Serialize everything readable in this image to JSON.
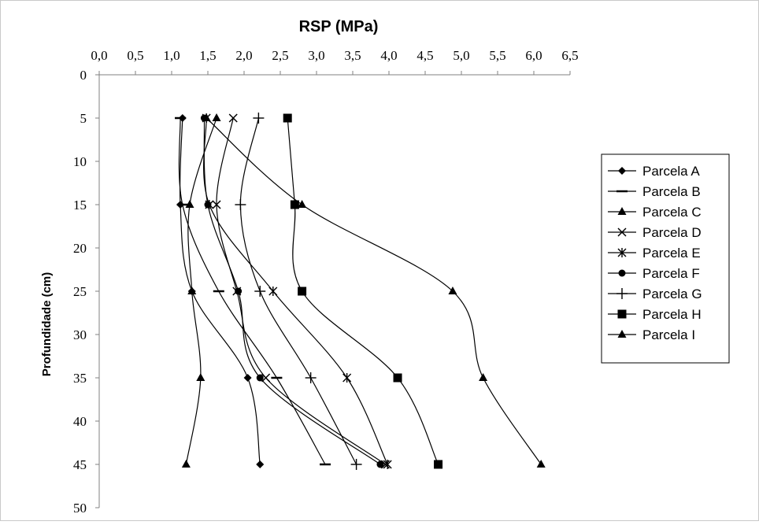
{
  "chart_data": {
    "type": "line",
    "title": "RSP (MPa)",
    "xlabel": "",
    "ylabel": "Profundidade (cm)",
    "x_axis_position": "top",
    "y_axis_inverted": true,
    "xlim": [
      0,
      6.5
    ],
    "ylim": [
      0,
      50
    ],
    "x_ticks": [
      "0,0",
      "0,5",
      "1,0",
      "1,5",
      "2,0",
      "2,5",
      "3,0",
      "3,5",
      "4,0",
      "4,5",
      "5,0",
      "5,5",
      "6,0",
      "6,5"
    ],
    "y_ticks": [
      "0",
      "5",
      "10",
      "15",
      "20",
      "25",
      "30",
      "35",
      "40",
      "45",
      "50"
    ],
    "grid": false,
    "legend_position": "right",
    "series": [
      {
        "name": "Parcela A",
        "marker": "diamond",
        "depth": [
          5,
          15,
          25,
          35,
          45
        ],
        "rsp": [
          1.15,
          1.12,
          1.28,
          2.05,
          2.22
        ]
      },
      {
        "name": "Parcela B",
        "marker": "dash",
        "depth": [
          5,
          15,
          25,
          35,
          45
        ],
        "rsp": [
          1.12,
          1.15,
          1.65,
          2.45,
          3.12
        ]
      },
      {
        "name": "Parcela C",
        "marker": "triangle",
        "depth": [
          5,
          15,
          25,
          35,
          45
        ],
        "rsp": [
          1.62,
          1.25,
          1.28,
          1.4,
          1.2
        ]
      },
      {
        "name": "Parcela D",
        "marker": "x",
        "depth": [
          5,
          15,
          25,
          35,
          45
        ],
        "rsp": [
          1.85,
          1.62,
          1.9,
          2.3,
          3.95
        ]
      },
      {
        "name": "Parcela E",
        "marker": "star",
        "depth": [
          5,
          15,
          25,
          35,
          45
        ],
        "rsp": [
          1.48,
          1.52,
          2.4,
          3.42,
          3.98
        ]
      },
      {
        "name": "Parcela F",
        "marker": "circle",
        "depth": [
          5,
          15,
          25,
          35,
          45
        ],
        "rsp": [
          1.45,
          1.5,
          1.92,
          2.22,
          3.88
        ]
      },
      {
        "name": "Parcela G",
        "marker": "plus",
        "depth": [
          5,
          15,
          25,
          35,
          45
        ],
        "rsp": [
          2.2,
          1.95,
          2.22,
          2.92,
          3.55
        ]
      },
      {
        "name": "Parcela H",
        "marker": "square",
        "depth": [
          5,
          15,
          25,
          35,
          45
        ],
        "rsp": [
          2.6,
          2.7,
          2.8,
          4.12,
          4.68
        ]
      },
      {
        "name": "Parcela I",
        "marker": "triangle",
        "depth": [
          5,
          15,
          25,
          35,
          45
        ],
        "rsp": [
          1.48,
          2.8,
          4.88,
          5.3,
          6.1
        ]
      }
    ]
  }
}
